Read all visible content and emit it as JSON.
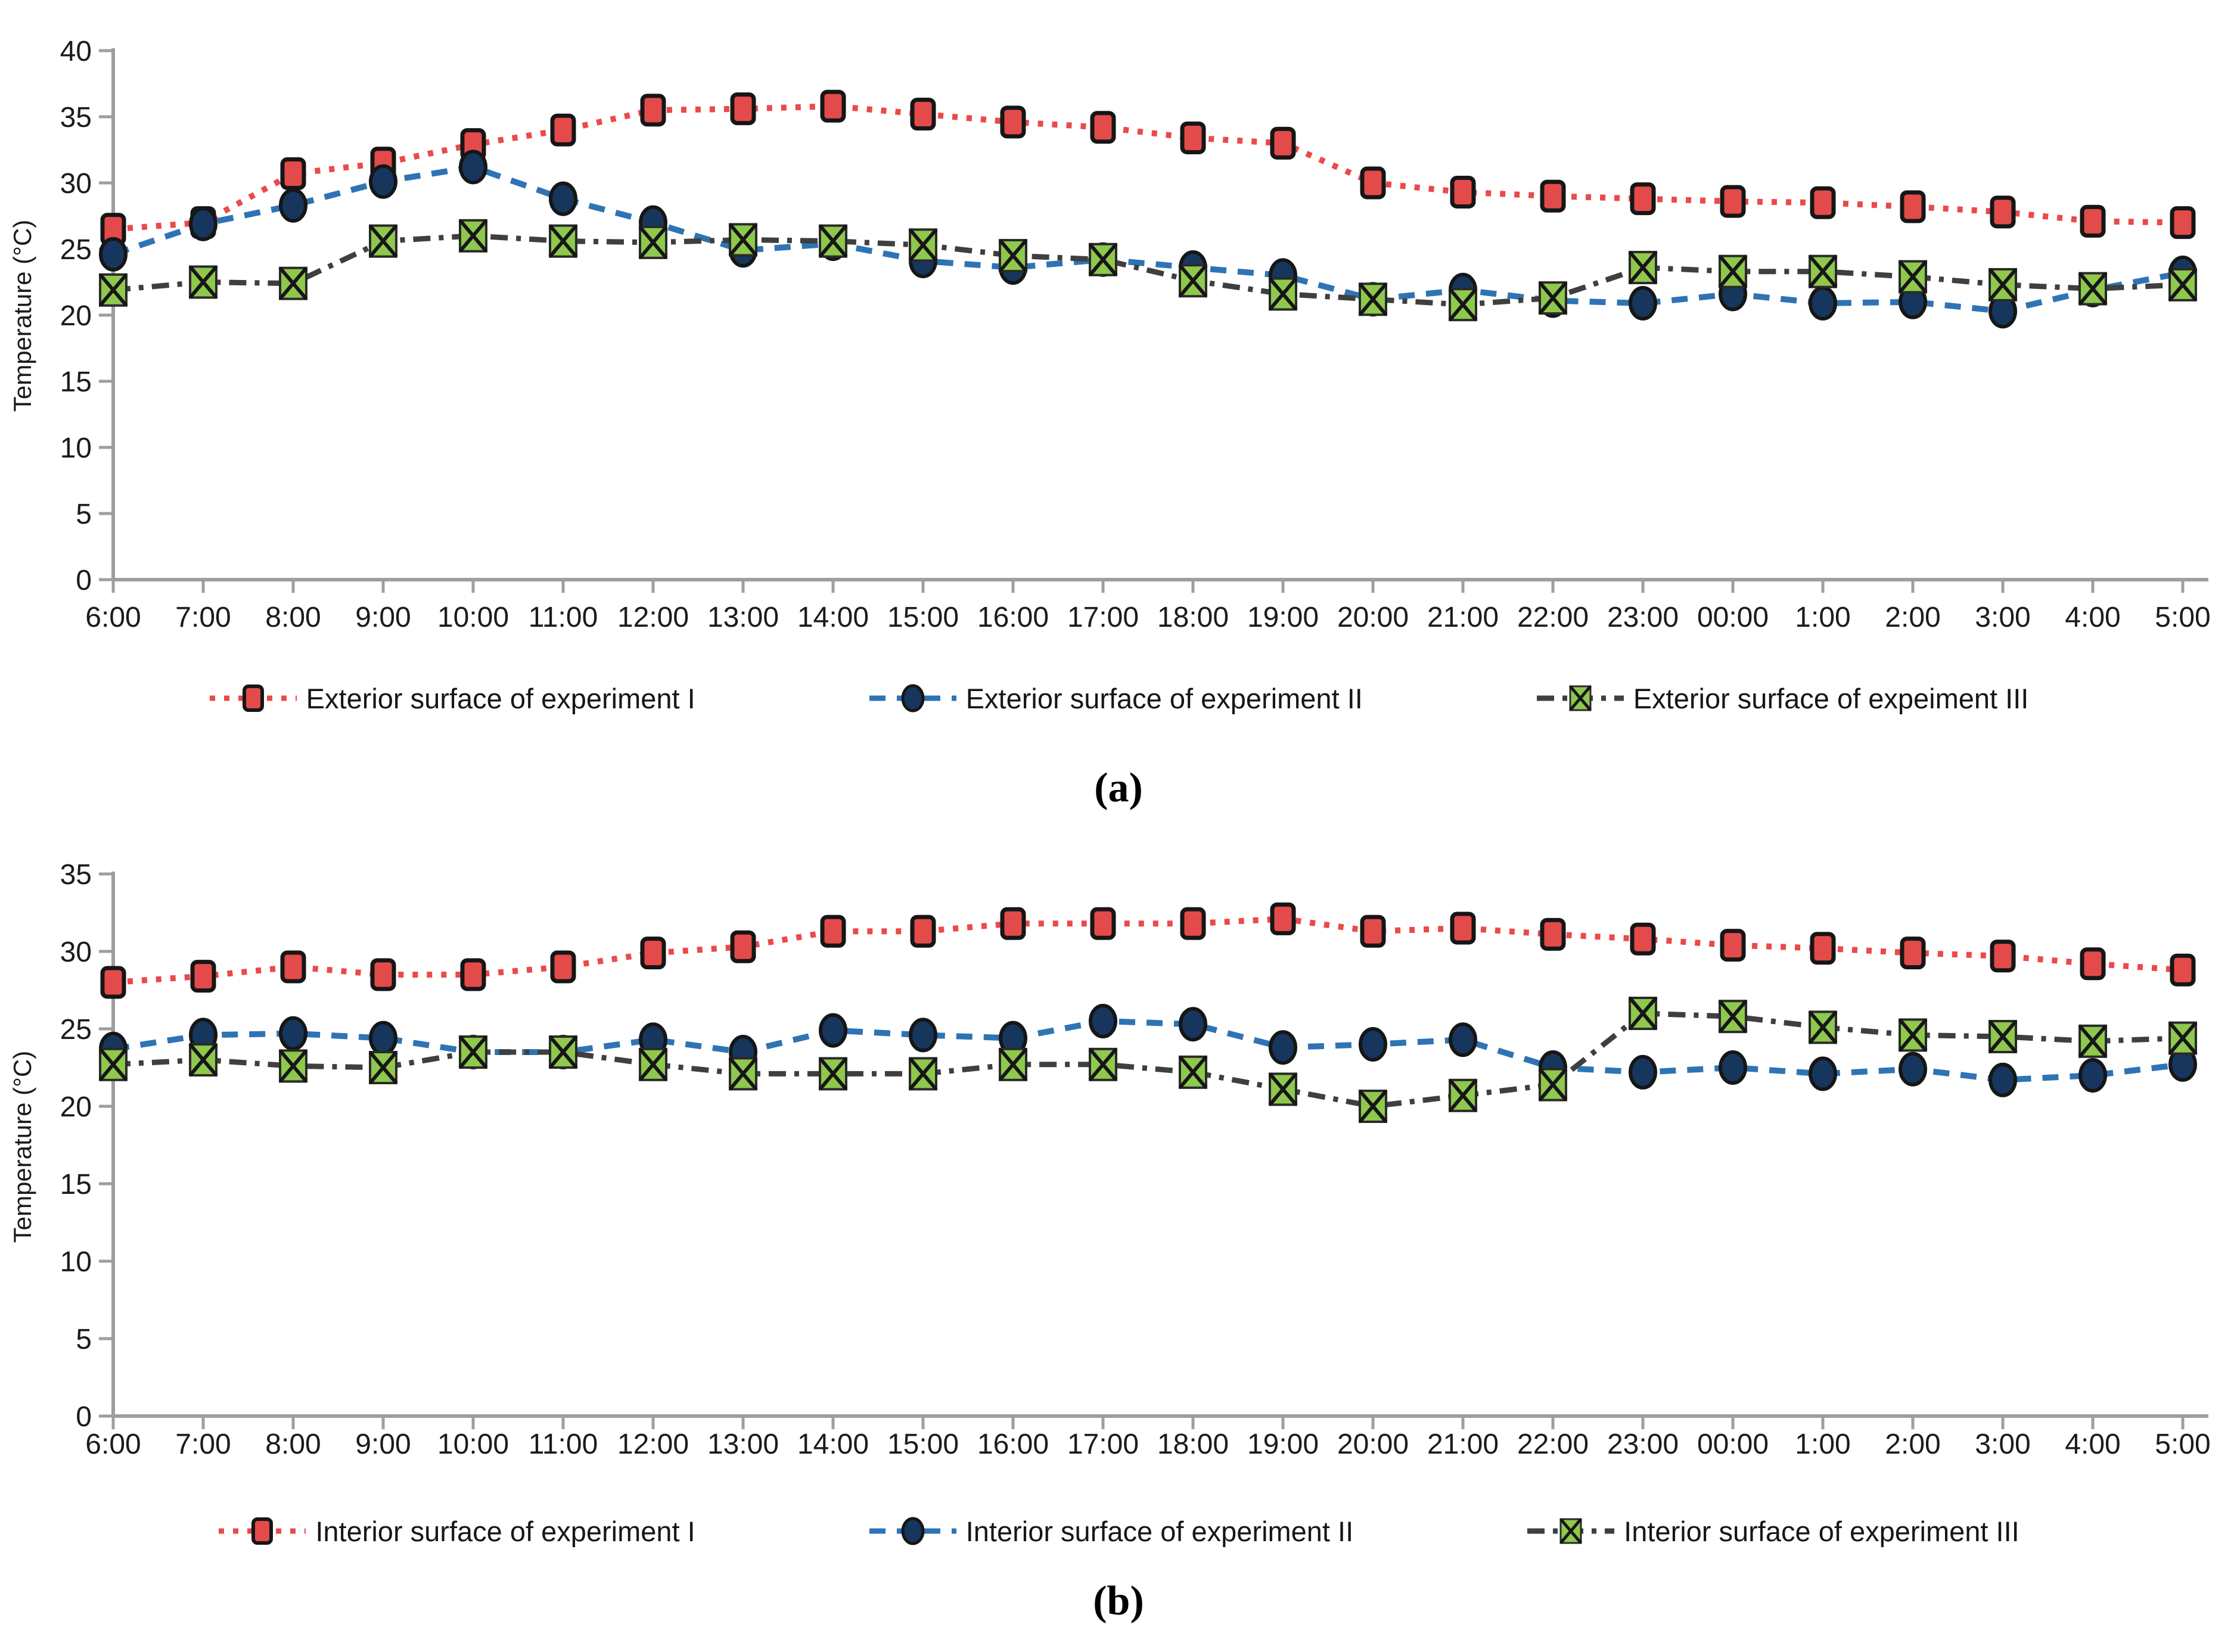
{
  "figure": {
    "caption_a": "(a)",
    "caption_b": "(b)"
  },
  "colors": {
    "series1_line": "#ea4a4a",
    "series1_fill": "#e34b4b",
    "series2_line": "#2e74b5",
    "series2_fill": "#17365d",
    "series3_line": "#3f3f3f",
    "series3_fill": "#8ec84c",
    "marker_stroke": "#161616",
    "axis": "#9e9e9e",
    "tick_text": "#1b1b1b"
  },
  "chart_data": [
    {
      "id": "a",
      "type": "line",
      "title": "",
      "xlabel": "",
      "ylabel": "Temperature (°C)",
      "caption": "(a)",
      "grid": false,
      "legend_position": "bottom",
      "ylim": [
        0,
        40
      ],
      "yticks": [
        0,
        5,
        10,
        15,
        20,
        25,
        30,
        35,
        40
      ],
      "x_categories": [
        "6:00",
        "7:00",
        "8:00",
        "9:00",
        "10:00",
        "11:00",
        "12:00",
        "13:00",
        "14:00",
        "15:00",
        "16:00",
        "17:00",
        "18:00",
        "19:00",
        "20:00",
        "21:00",
        "22:00",
        "23:00",
        "00:00",
        "1:00",
        "2:00",
        "3:00",
        "4:00",
        "5:00"
      ],
      "series": [
        {
          "name": "Exterior surface of experiment I",
          "marker": "square",
          "line_style": "dotted",
          "color": "#e34b4b",
          "line_color": "#ea4a4a",
          "values": [
            26.5,
            27.0,
            30.7,
            31.5,
            32.9,
            34.0,
            35.5,
            35.6,
            35.8,
            35.2,
            34.6,
            34.2,
            33.4,
            33.0,
            30.0,
            29.3,
            29.0,
            28.8,
            28.6,
            28.5,
            28.2,
            27.8,
            27.1,
            27.0
          ]
        },
        {
          "name": "Exterior surface of experiment II",
          "marker": "circle",
          "line_style": "dashed",
          "color": "#17365d",
          "line_color": "#2e74b5",
          "values": [
            24.6,
            26.9,
            28.3,
            30.1,
            31.2,
            28.8,
            27.0,
            24.9,
            25.4,
            24.1,
            23.6,
            24.2,
            23.6,
            23.0,
            21.2,
            21.9,
            21.1,
            20.9,
            21.6,
            20.9,
            21.0,
            20.3,
            21.9,
            23.2
          ]
        },
        {
          "name": "Exterior surface of expeiment III",
          "marker": "x-square",
          "line_style": "dash-dot",
          "color": "#8ec84c",
          "line_color": "#3f3f3f",
          "values": [
            21.9,
            22.5,
            22.4,
            25.6,
            26.0,
            25.6,
            25.5,
            25.7,
            25.6,
            25.3,
            24.5,
            24.2,
            22.6,
            21.6,
            21.2,
            20.8,
            21.3,
            23.6,
            23.3,
            23.3,
            22.9,
            22.3,
            22.0,
            22.3
          ]
        }
      ]
    },
    {
      "id": "b",
      "type": "line",
      "title": "",
      "xlabel": "",
      "ylabel": "Temperature (°C)",
      "caption": "(b)",
      "grid": false,
      "legend_position": "bottom",
      "ylim": [
        0,
        35
      ],
      "yticks": [
        0,
        5,
        10,
        15,
        20,
        25,
        30,
        35
      ],
      "x_categories": [
        "6:00",
        "7:00",
        "8:00",
        "9:00",
        "10:00",
        "11:00",
        "12:00",
        "13:00",
        "14:00",
        "15:00",
        "16:00",
        "17:00",
        "18:00",
        "19:00",
        "20:00",
        "21:00",
        "22:00",
        "23:00",
        "00:00",
        "1:00",
        "2:00",
        "3:00",
        "4:00",
        "5:00"
      ],
      "series": [
        {
          "name": "Interior surface of experiment I",
          "marker": "square",
          "line_style": "dotted",
          "color": "#e34b4b",
          "line_color": "#ea4a4a",
          "values": [
            28.0,
            28.4,
            29.0,
            28.5,
            28.5,
            29.0,
            29.9,
            30.3,
            31.3,
            31.3,
            31.8,
            31.8,
            31.8,
            32.1,
            31.3,
            31.5,
            31.1,
            30.8,
            30.4,
            30.2,
            29.9,
            29.7,
            29.2,
            28.8
          ]
        },
        {
          "name": "Interior surface of experiment II",
          "marker": "circle",
          "line_style": "dashed",
          "color": "#17365d",
          "line_color": "#2e74b5",
          "values": [
            23.7,
            24.6,
            24.7,
            24.4,
            23.5,
            23.5,
            24.3,
            23.5,
            24.9,
            24.6,
            24.4,
            25.5,
            25.3,
            23.8,
            24.0,
            24.3,
            22.5,
            22.2,
            22.5,
            22.1,
            22.4,
            21.7,
            22.0,
            22.7
          ]
        },
        {
          "name": "Interior surface of experiment III",
          "marker": "x-square",
          "line_style": "dash-dot",
          "color": "#8ec84c",
          "line_color": "#3f3f3f",
          "values": [
            22.7,
            23.0,
            22.6,
            22.5,
            23.5,
            23.5,
            22.7,
            22.1,
            22.1,
            22.1,
            22.7,
            22.7,
            22.2,
            21.1,
            20.0,
            20.7,
            21.4,
            26.0,
            25.8,
            25.1,
            24.6,
            24.5,
            24.2,
            24.4
          ]
        }
      ]
    }
  ]
}
